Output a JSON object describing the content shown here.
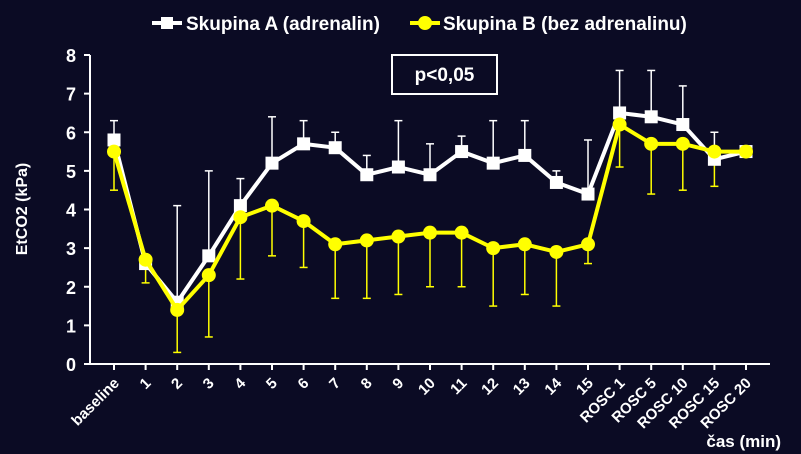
{
  "chart_data": {
    "type": "line",
    "ylabel": "EtCO2 (kPa)",
    "xlabel": "čas (min)",
    "ylim": [
      0,
      8
    ],
    "yticks": [
      0,
      1,
      2,
      3,
      4,
      5,
      6,
      7,
      8
    ],
    "annotation": "p<0,05",
    "legend_position": "top",
    "categories": [
      "baseline",
      "1",
      "2",
      "3",
      "4",
      "5",
      "6",
      "7",
      "8",
      "9",
      "10",
      "11",
      "12",
      "13",
      "14",
      "15",
      "ROSC 1",
      "ROSC 5",
      "ROSC 10",
      "ROSC 15",
      "ROSC 20"
    ],
    "series": [
      {
        "name": "Skupina A (adrenalin)",
        "color": "#ffffff",
        "marker": "square",
        "values": [
          5.8,
          2.6,
          1.6,
          2.8,
          4.1,
          5.2,
          5.7,
          5.6,
          4.9,
          5.1,
          4.9,
          5.5,
          5.2,
          5.4,
          4.7,
          4.4,
          6.5,
          6.4,
          6.2,
          5.3,
          5.5
        ],
        "err_upper": [
          6.3,
          2.7,
          4.1,
          5.0,
          4.8,
          6.4,
          6.3,
          6.0,
          5.4,
          6.3,
          5.7,
          5.9,
          6.3,
          6.3,
          5.0,
          5.8,
          7.6,
          7.6,
          7.2,
          6.0,
          null
        ]
      },
      {
        "name": "Skupina B (bez adrenalinu)",
        "color": "#ffff00",
        "marker": "circle",
        "values": [
          5.5,
          2.7,
          1.4,
          2.3,
          3.8,
          4.1,
          3.7,
          3.1,
          3.2,
          3.3,
          3.4,
          3.4,
          3.0,
          3.1,
          2.9,
          3.1,
          6.2,
          5.7,
          5.7,
          5.5,
          5.5
        ],
        "err_lower": [
          4.5,
          2.1,
          0.3,
          0.7,
          2.2,
          2.8,
          2.5,
          1.7,
          1.7,
          1.8,
          2.0,
          2.0,
          1.5,
          1.8,
          1.5,
          2.6,
          5.1,
          4.4,
          4.5,
          4.6,
          null
        ]
      }
    ]
  }
}
